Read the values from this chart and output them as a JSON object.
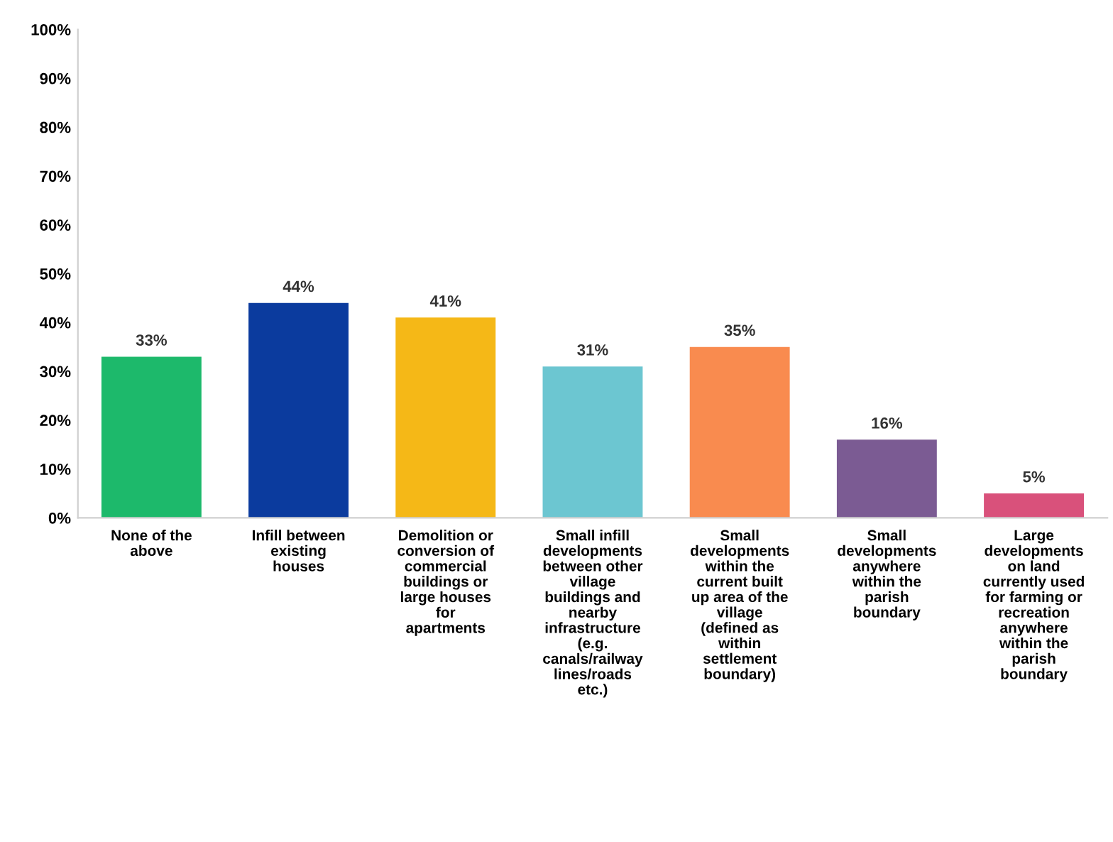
{
  "chart_data": {
    "type": "bar",
    "categories": [
      "None of the\nabove",
      "Infill between\nexisting\nhouses",
      "Demolition or\nconversion of\ncommercial\nbuildings or\nlarge houses\nfor\napartments",
      "Small infill\ndevelopments\nbetween other\nvillage\nbuildings and\nnearby\ninfrastructure\n(e.g.\ncanals/railway\nlines/roads\netc.)",
      "Small\ndevelopments\nwithin the\ncurrent built\nup area of the\nvillage\n(defined as\nwithin\nsettlement\nboundary)",
      "Small\ndevelopments\nanywhere\nwithin the\nparish\nboundary",
      "Large\ndevelopments\non land\ncurrently used\nfor farming or\nrecreation\nanywhere\nwithin the\nparish\nboundary"
    ],
    "values": [
      33,
      44,
      41,
      31,
      35,
      16,
      5
    ],
    "value_labels": [
      "33%",
      "44%",
      "41%",
      "31%",
      "35%",
      "16%",
      "5%"
    ],
    "colors": [
      "#1db96b",
      "#0b3b9e",
      "#f5b817",
      "#6cc6d1",
      "#f98b4f",
      "#7b5b93",
      "#d9517b"
    ],
    "ylim": [
      0,
      100
    ],
    "yticks": [
      {
        "value": 0,
        "label": "0%"
      },
      {
        "value": 10,
        "label": "10%"
      },
      {
        "value": 20,
        "label": "20%"
      },
      {
        "value": 30,
        "label": "30%"
      },
      {
        "value": 40,
        "label": "40%"
      },
      {
        "value": 50,
        "label": "50%"
      },
      {
        "value": 60,
        "label": "60%"
      },
      {
        "value": 70,
        "label": "70%"
      },
      {
        "value": 80,
        "label": "80%"
      },
      {
        "value": 90,
        "label": "90%"
      },
      {
        "value": 100,
        "label": "100%"
      }
    ],
    "grid": false,
    "legend": false
  }
}
